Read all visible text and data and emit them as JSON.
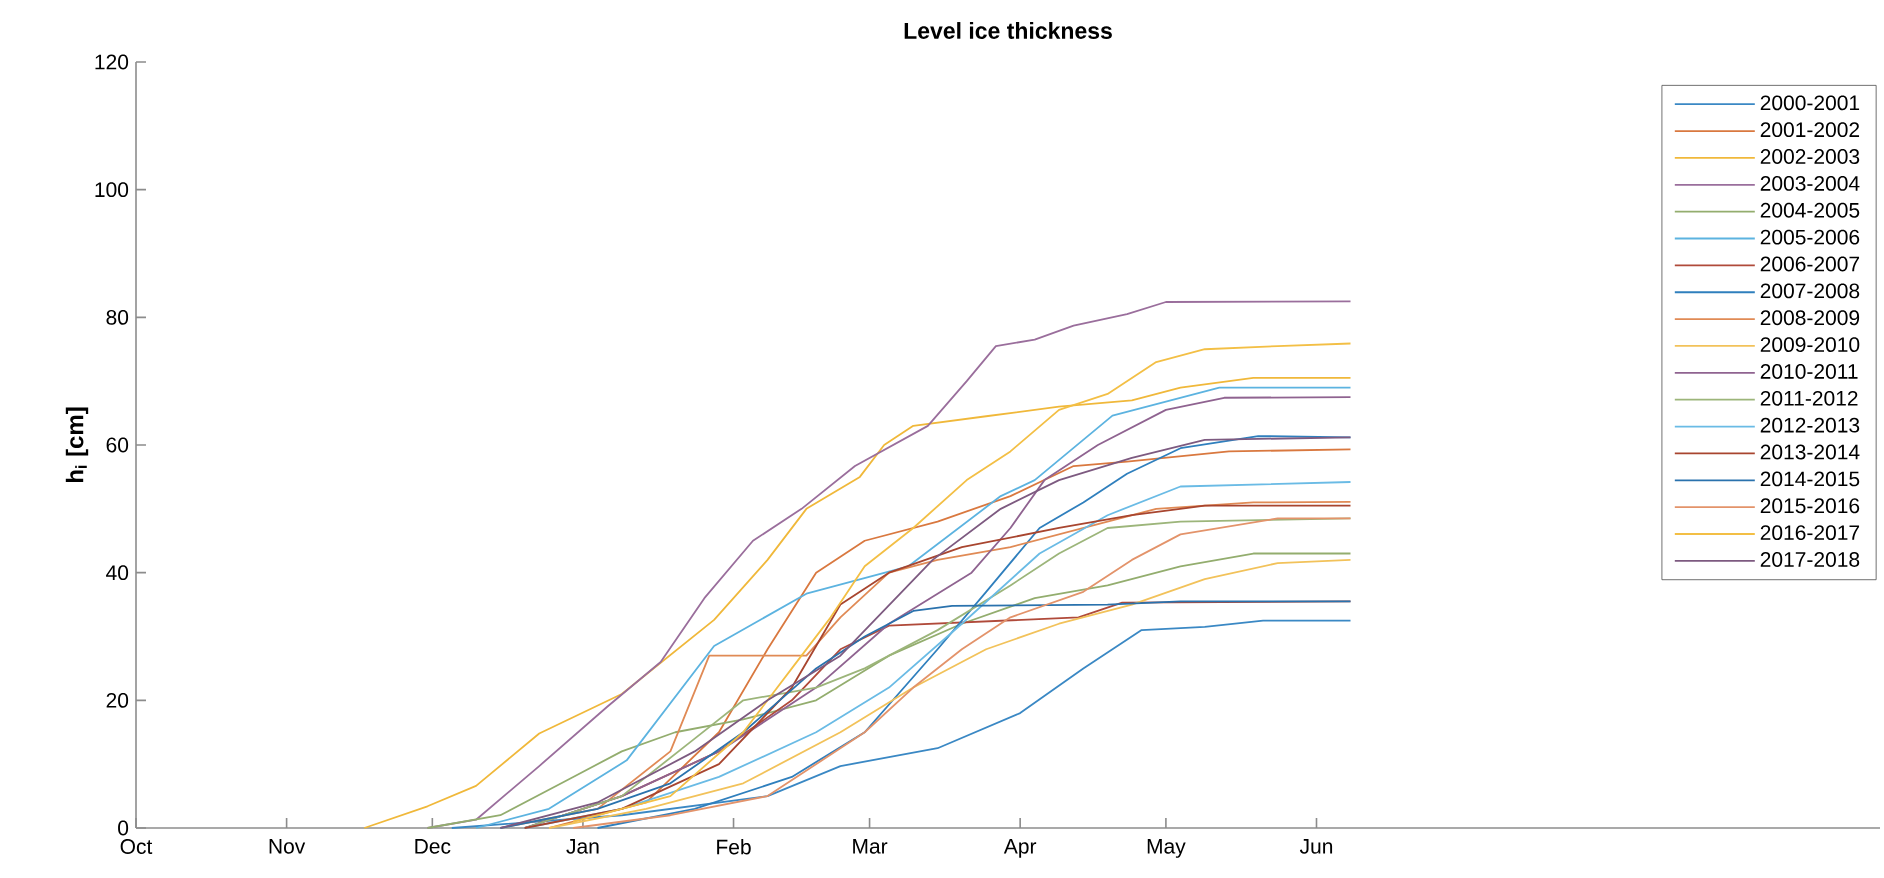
{
  "chart_data": {
    "type": "line",
    "title": "Level ice thickness",
    "ylabel": "h$_{i}$ [cm]",
    "xlim": [
      "2000-10-01",
      "2001-09-25"
    ],
    "ylim": [
      0,
      120
    ],
    "xticks": [
      {
        "value": "2000-10-01",
        "label": "Oct"
      },
      {
        "value": "2000-11-01",
        "label": "Nov"
      },
      {
        "value": "2000-12-01",
        "label": "Dec"
      },
      {
        "value": "2001-01-01",
        "label": "Jan"
      },
      {
        "value": "2001-02-01",
        "label": "Feb"
      },
      {
        "value": "2001-03-01",
        "label": "Mar"
      },
      {
        "value": "2001-04-01",
        "label": "Apr"
      },
      {
        "value": "2001-05-01",
        "label": "May"
      },
      {
        "value": "2001-06-01",
        "label": "Jun"
      }
    ],
    "yticks": [
      0,
      20,
      40,
      60,
      80,
      100,
      120
    ],
    "legend": "top right",
    "marker": "none",
    "grid": false,
    "series": [
      {
        "name": "2000-2001",
        "color": "#3a88c4",
        "x": [
          "2000-12-05",
          "2001-01-09",
          "2001-02-08",
          "2001-02-23",
          "2001-03-15",
          "2001-04-01",
          "2001-04-14",
          "2001-04-26",
          "2001-05-09",
          "2001-05-21",
          "2001-06-08"
        ],
        "values": [
          0,
          2,
          5,
          9.7,
          12.5,
          18,
          25,
          31,
          31.5,
          32.5,
          32.5
        ]
      },
      {
        "name": "2001-2002",
        "color": "#d9783f",
        "x": [
          "2000-12-25",
          "2001-01-14",
          "2001-01-29",
          "2001-02-08",
          "2001-02-18",
          "2001-02-28",
          "2001-03-15",
          "2001-03-30",
          "2001-04-12",
          "2001-04-23",
          "2001-05-14",
          "2001-06-08"
        ],
        "values": [
          0,
          4,
          15,
          28,
          40,
          45,
          48,
          52,
          56.7,
          57.4,
          59,
          59.3
        ]
      },
      {
        "name": "2002-2003",
        "color": "#f0b83a",
        "x": [
          "2000-11-17",
          "2000-11-30",
          "2000-12-10",
          "2000-12-23",
          "2001-01-09",
          "2001-01-28",
          "2001-02-08",
          "2001-02-16",
          "2001-02-27",
          "2001-03-04",
          "2001-03-10",
          "2001-03-25",
          "2001-04-09",
          "2001-04-24",
          "2001-05-04",
          "2001-05-19",
          "2001-06-08"
        ],
        "values": [
          0,
          3.4,
          6.6,
          14.8,
          21,
          32.6,
          42,
          50,
          55,
          60,
          63,
          64.5,
          66,
          67,
          69,
          70.5,
          70.5
        ]
      },
      {
        "name": "2003-2004",
        "color": "#9a6e9c",
        "x": [
          "2000-11-30",
          "2000-12-10",
          "2000-12-23",
          "2001-01-06",
          "2001-01-17",
          "2001-01-26",
          "2001-02-05",
          "2001-02-15",
          "2001-02-26",
          "2001-03-13",
          "2001-03-21",
          "2001-03-27",
          "2001-04-04",
          "2001-04-12",
          "2001-04-23",
          "2001-05-01",
          "2001-06-08"
        ],
        "values": [
          0,
          1.3,
          9.7,
          19,
          26,
          36,
          45,
          50,
          56.7,
          63,
          70,
          75.5,
          76.5,
          78.7,
          80.5,
          82.4,
          82.5
        ]
      },
      {
        "name": "2004-2005",
        "color": "#93ad6e",
        "x": [
          "2000-11-30",
          "2000-12-15",
          "2000-12-30",
          "2001-01-09",
          "2001-01-20",
          "2001-02-03",
          "2001-02-18",
          "2001-03-05",
          "2001-03-20",
          "2001-04-04",
          "2001-04-19",
          "2001-05-04",
          "2001-05-19",
          "2001-06-08"
        ],
        "values": [
          0,
          2,
          8,
          12,
          15,
          17,
          20,
          27,
          32,
          36,
          38,
          41,
          43,
          43
        ]
      },
      {
        "name": "2005-2006",
        "color": "#5cb3e0",
        "x": [
          "2000-12-10",
          "2000-12-25",
          "2001-01-10",
          "2001-01-28",
          "2001-02-16",
          "2001-03-09",
          "2001-03-28",
          "2001-04-04",
          "2001-04-20",
          "2001-05-12",
          "2001-06-08"
        ],
        "values": [
          0,
          3,
          10.6,
          28.5,
          36.7,
          41,
          52,
          54.5,
          64.6,
          69,
          69
        ]
      },
      {
        "name": "2006-2007",
        "color": "#b04a3a",
        "x": [
          "2000-12-20",
          "2001-01-09",
          "2001-01-29",
          "2001-02-13",
          "2001-02-23",
          "2001-03-05",
          "2001-04-13",
          "2001-04-22",
          "2001-06-08"
        ],
        "values": [
          0,
          5,
          12,
          20,
          28,
          31.7,
          33,
          35.3,
          35.5
        ]
      },
      {
        "name": "2007-2008",
        "color": "#2f7fbd",
        "x": [
          "2001-01-04",
          "2001-01-24",
          "2001-02-13",
          "2001-02-28",
          "2001-03-15",
          "2001-03-25",
          "2001-04-05",
          "2001-04-14",
          "2001-04-23",
          "2001-05-04",
          "2001-05-20",
          "2001-06-08"
        ],
        "values": [
          0,
          3,
          8,
          15,
          28,
          37,
          47,
          51,
          55.5,
          59.5,
          61.4,
          61.2
        ]
      },
      {
        "name": "2008-2009",
        "color": "#e08a55",
        "x": [
          "2000-12-15",
          "2001-01-04",
          "2001-01-19",
          "2001-01-27",
          "2001-02-16",
          "2001-02-23",
          "2001-03-05",
          "2001-03-15",
          "2001-03-30",
          "2001-04-14",
          "2001-04-29",
          "2001-05-19",
          "2001-06-08"
        ],
        "values": [
          0,
          3,
          12,
          27,
          27,
          33,
          40,
          42,
          44,
          47,
          50,
          51,
          51.1
        ]
      },
      {
        "name": "2009-2010",
        "color": "#f2c25a",
        "x": [
          "2000-12-25",
          "2001-01-14",
          "2001-02-03",
          "2001-02-23",
          "2001-03-10",
          "2001-03-25",
          "2001-04-09",
          "2001-04-24",
          "2001-05-09",
          "2001-05-24",
          "2001-06-08"
        ],
        "values": [
          0,
          3,
          7,
          15,
          22,
          28,
          32,
          35,
          39,
          41.5,
          42
        ]
      },
      {
        "name": "2010-2011",
        "color": "#8f6390",
        "x": [
          "2000-12-20",
          "2001-01-09",
          "2001-01-29",
          "2001-02-18",
          "2001-03-05",
          "2001-03-22",
          "2001-03-30",
          "2001-04-06",
          "2001-04-17",
          "2001-05-01",
          "2001-05-13",
          "2001-06-08"
        ],
        "values": [
          0,
          5,
          12,
          22,
          32,
          40,
          47,
          54.5,
          60,
          65.5,
          67.4,
          67.5
        ]
      },
      {
        "name": "2011-2012",
        "color": "#9cb57a",
        "x": [
          "2000-12-20",
          "2001-01-09",
          "2001-01-24",
          "2001-02-03",
          "2001-02-18",
          "2001-02-28",
          "2001-03-15",
          "2001-03-30",
          "2001-04-09",
          "2001-04-19",
          "2001-05-04",
          "2001-06-08"
        ],
        "values": [
          0,
          5,
          14,
          20,
          22,
          25,
          31,
          38,
          43,
          47,
          48,
          48.5
        ]
      },
      {
        "name": "2012-2013",
        "color": "#6abbe5",
        "x": [
          "2000-12-20",
          "2001-01-09",
          "2001-01-29",
          "2001-02-18",
          "2001-03-05",
          "2001-03-20",
          "2001-04-05",
          "2001-04-19",
          "2001-05-04",
          "2001-06-08"
        ],
        "values": [
          0,
          3,
          8,
          15,
          22,
          32,
          43,
          49,
          53.5,
          54.2
        ]
      },
      {
        "name": "2013-2014",
        "color": "#a8452f",
        "x": [
          "2000-12-20",
          "2001-01-09",
          "2001-01-29",
          "2001-02-13",
          "2001-02-23",
          "2001-03-05",
          "2001-03-20",
          "2001-04-09",
          "2001-04-24",
          "2001-05-09",
          "2001-06-08"
        ],
        "values": [
          0,
          3,
          10,
          22,
          35,
          40,
          44,
          47,
          49,
          50.5,
          50.5
        ]
      },
      {
        "name": "2014-2015",
        "color": "#2a72ad",
        "x": [
          "2000-12-15",
          "2001-01-04",
          "2001-01-19",
          "2001-02-03",
          "2001-02-18",
          "2001-02-28",
          "2001-03-10",
          "2001-03-18",
          "2001-04-19",
          "2001-05-04",
          "2001-06-08"
        ],
        "values": [
          0,
          3,
          7,
          15,
          25,
          30,
          34,
          34.8,
          35,
          35.5,
          35.5
        ]
      },
      {
        "name": "2015-2016",
        "color": "#e3936a",
        "x": [
          "2000-12-30",
          "2001-01-19",
          "2001-02-08",
          "2001-02-18",
          "2001-02-28",
          "2001-03-10",
          "2001-03-20",
          "2001-03-30",
          "2001-04-14",
          "2001-04-24",
          "2001-05-04",
          "2001-05-24",
          "2001-06-08"
        ],
        "values": [
          0,
          2,
          5,
          10,
          15,
          22,
          28,
          33,
          37,
          42,
          46,
          48.5,
          48.5
        ]
      },
      {
        "name": "2016-2017",
        "color": "#f3bf45",
        "x": [
          "2000-12-30",
          "2001-01-19",
          "2001-02-03",
          "2001-02-13",
          "2001-02-21",
          "2001-02-28",
          "2001-03-10",
          "2001-03-21",
          "2001-03-30",
          "2001-04-09",
          "2001-04-19",
          "2001-04-29",
          "2001-05-09",
          "2001-05-24",
          "2001-06-08"
        ],
        "values": [
          1,
          5,
          15,
          25,
          33,
          41,
          47,
          54.5,
          59,
          65.5,
          68,
          73,
          75,
          75.5,
          75.9
        ]
      },
      {
        "name": "2017-2018",
        "color": "#7d5a80",
        "x": [
          "2000-12-15",
          "2001-01-04",
          "2001-01-24",
          "2001-02-08",
          "2001-02-23",
          "2001-03-14",
          "2001-03-28",
          "2001-04-09",
          "2001-04-24",
          "2001-05-09",
          "2001-06-08"
        ],
        "values": [
          0,
          4,
          12,
          20,
          27,
          42,
          50,
          54.5,
          58,
          60.8,
          61.2
        ]
      }
    ]
  }
}
